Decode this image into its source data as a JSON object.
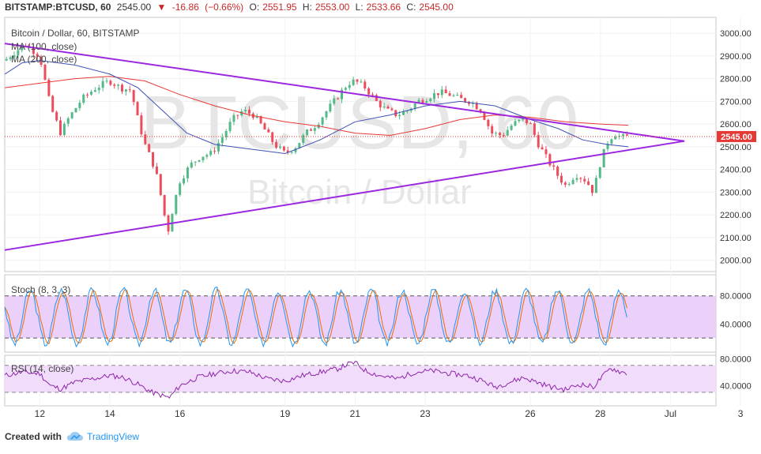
{
  "header": {
    "symbol_tf": "BITSTAMP:BTCUSD, 60",
    "last": "2545.00",
    "arrow": "▼",
    "change": "-16.86",
    "change_pct": "(−0.66%)",
    "o_label": "O:",
    "o_val": "2551.95",
    "h_label": "H:",
    "h_val": "2553.00",
    "l_label": "L:",
    "l_val": "2533.66",
    "c_label": "C:",
    "c_val": "2545.00"
  },
  "main_pane": {
    "title": "Bitcoin / Dollar, 60, BITSTAMP",
    "ma100_label": "MA (100, close)",
    "ma200_label": "MA (200, close)",
    "watermark_big": "BTCUSD, 60",
    "watermark_small": "Bitcoin / Dollar",
    "last_price_label": "2545.00",
    "price_ticks": [
      "3000.00",
      "2900.00",
      "2800.00",
      "2700.00",
      "2600.00",
      "2500.00",
      "2400.00",
      "2300.00",
      "2200.00",
      "2100.00",
      "2000.00"
    ]
  },
  "stoch_pane": {
    "title": "Stoch (8, 3, 3)",
    "ticks": [
      "80.0000",
      "40.0000"
    ]
  },
  "rsi_pane": {
    "title": "RSI (14, close)",
    "ticks": [
      "80.0000",
      "40.0000"
    ]
  },
  "time_axis": {
    "labels": [
      "12",
      "14",
      "16",
      "19",
      "21",
      "23",
      "26",
      "28",
      "Jul",
      "3"
    ]
  },
  "footer": {
    "created": "Created with",
    "brand": "TradingView"
  },
  "colors": {
    "up": "#53b987",
    "down": "#eb4d5c",
    "ma100": "#3f51b5",
    "ma200": "#e53935",
    "trendline": "#9c27e0",
    "stoch_k": "#2196f3",
    "stoch_d": "#ef6c00",
    "rsi": "#8e24aa",
    "band_fill": "#e8c8f8",
    "last_price": "#e53935"
  },
  "chart_data": {
    "type": "line",
    "x_unit": "date (June–July, 60-minute bars)",
    "ylim": [
      1950,
      3070
    ],
    "price_path": [
      [
        11.0,
        2880
      ],
      [
        11.3,
        2920
      ],
      [
        11.6,
        2950
      ],
      [
        12.0,
        2900
      ],
      [
        12.3,
        2680
      ],
      [
        12.6,
        2560
      ],
      [
        12.8,
        2620
      ],
      [
        13.2,
        2710
      ],
      [
        13.6,
        2760
      ],
      [
        14.0,
        2790
      ],
      [
        14.3,
        2760
      ],
      [
        14.6,
        2750
      ],
      [
        14.8,
        2620
      ],
      [
        15.0,
        2510
      ],
      [
        15.3,
        2400
      ],
      [
        15.5,
        2250
      ],
      [
        15.65,
        2120
      ],
      [
        15.8,
        2230
      ],
      [
        16.0,
        2350
      ],
      [
        16.3,
        2420
      ],
      [
        16.6,
        2460
      ],
      [
        16.9,
        2470
      ],
      [
        17.2,
        2540
      ],
      [
        17.5,
        2620
      ],
      [
        17.8,
        2660
      ],
      [
        18.1,
        2640
      ],
      [
        18.4,
        2580
      ],
      [
        18.7,
        2510
      ],
      [
        19.0,
        2470
      ],
      [
        19.3,
        2500
      ],
      [
        19.6,
        2560
      ],
      [
        19.9,
        2600
      ],
      [
        20.2,
        2660
      ],
      [
        20.5,
        2720
      ],
      [
        20.8,
        2780
      ],
      [
        21.0,
        2790
      ],
      [
        21.3,
        2760
      ],
      [
        21.6,
        2700
      ],
      [
        21.9,
        2660
      ],
      [
        22.2,
        2640
      ],
      [
        22.5,
        2660
      ],
      [
        22.8,
        2700
      ],
      [
        23.1,
        2720
      ],
      [
        23.4,
        2740
      ],
      [
        23.7,
        2730
      ],
      [
        24.0,
        2710
      ],
      [
        24.3,
        2700
      ],
      [
        24.6,
        2660
      ],
      [
        24.9,
        2560
      ],
      [
        25.2,
        2550
      ],
      [
        25.5,
        2600
      ],
      [
        25.8,
        2620
      ],
      [
        26.0,
        2600
      ],
      [
        26.2,
        2520
      ],
      [
        26.5,
        2440
      ],
      [
        26.8,
        2370
      ],
      [
        27.0,
        2330
      ],
      [
        27.3,
        2380
      ],
      [
        27.6,
        2350
      ],
      [
        27.8,
        2300
      ],
      [
        28.0,
        2430
      ],
      [
        28.2,
        2520
      ],
      [
        28.4,
        2560
      ],
      [
        28.6,
        2540
      ],
      [
        28.8,
        2545
      ]
    ],
    "ma100_path": [
      [
        11.0,
        2820
      ],
      [
        11.5,
        2870
      ],
      [
        12.0,
        2880
      ],
      [
        13.0,
        2860
      ],
      [
        14.0,
        2820
      ],
      [
        14.8,
        2760
      ],
      [
        15.5,
        2660
      ],
      [
        16.2,
        2560
      ],
      [
        17.0,
        2510
      ],
      [
        18.0,
        2490
      ],
      [
        19.0,
        2470
      ],
      [
        20.0,
        2530
      ],
      [
        21.0,
        2610
      ],
      [
        22.0,
        2640
      ],
      [
        23.0,
        2680
      ],
      [
        24.0,
        2700
      ],
      [
        25.0,
        2680
      ],
      [
        26.0,
        2620
      ],
      [
        26.8,
        2580
      ],
      [
        27.5,
        2530
      ],
      [
        28.2,
        2510
      ],
      [
        28.8,
        2500
      ]
    ],
    "ma200_path": [
      [
        11.0,
        2760
      ],
      [
        12.0,
        2780
      ],
      [
        13.0,
        2800
      ],
      [
        14.0,
        2810
      ],
      [
        15.0,
        2790
      ],
      [
        16.0,
        2730
      ],
      [
        17.0,
        2680
      ],
      [
        18.0,
        2640
      ],
      [
        19.0,
        2610
      ],
      [
        20.0,
        2590
      ],
      [
        21.0,
        2560
      ],
      [
        22.0,
        2550
      ],
      [
        23.0,
        2580
      ],
      [
        24.0,
        2620
      ],
      [
        25.0,
        2640
      ],
      [
        26.0,
        2630
      ],
      [
        27.0,
        2610
      ],
      [
        28.0,
        2600
      ],
      [
        28.8,
        2595
      ]
    ],
    "trendlines": [
      {
        "name": "",
        "points": [
          [
            11.0,
            2955
          ],
          [
            30.4,
            2525
          ]
        ]
      },
      {
        "name": "",
        "points": [
          [
            11.0,
            2045
          ],
          [
            30.4,
            2525
          ]
        ]
      }
    ],
    "last_price": 2545.0,
    "stoch_ylim": [
      0,
      110
    ],
    "stoch_band": [
      20,
      80
    ],
    "rsi_ylim": [
      10,
      85
    ],
    "rsi_band": [
      30,
      70
    ],
    "rsi_path": [
      [
        11.0,
        55
      ],
      [
        11.5,
        60
      ],
      [
        12.0,
        58
      ],
      [
        12.3,
        40
      ],
      [
        12.6,
        35
      ],
      [
        13.0,
        45
      ],
      [
        13.5,
        50
      ],
      [
        14.0,
        55
      ],
      [
        14.4,
        52
      ],
      [
        14.8,
        42
      ],
      [
        15.2,
        30
      ],
      [
        15.5,
        25
      ],
      [
        15.7,
        22
      ],
      [
        16.0,
        40
      ],
      [
        16.5,
        52
      ],
      [
        17.0,
        58
      ],
      [
        17.5,
        62
      ],
      [
        18.0,
        60
      ],
      [
        18.5,
        50
      ],
      [
        19.0,
        47
      ],
      [
        19.5,
        55
      ],
      [
        20.0,
        60
      ],
      [
        20.5,
        65
      ],
      [
        20.8,
        72
      ],
      [
        21.0,
        74
      ],
      [
        21.3,
        62
      ],
      [
        21.7,
        55
      ],
      [
        22.2,
        50
      ],
      [
        22.7,
        60
      ],
      [
        23.2,
        62
      ],
      [
        23.7,
        58
      ],
      [
        24.2,
        55
      ],
      [
        24.6,
        48
      ],
      [
        25.0,
        38
      ],
      [
        25.4,
        45
      ],
      [
        25.8,
        52
      ],
      [
        26.2,
        45
      ],
      [
        26.6,
        38
      ],
      [
        27.0,
        34
      ],
      [
        27.4,
        42
      ],
      [
        27.8,
        38
      ],
      [
        28.0,
        50
      ],
      [
        28.3,
        66
      ],
      [
        28.6,
        60
      ],
      [
        28.8,
        58
      ]
    ]
  }
}
